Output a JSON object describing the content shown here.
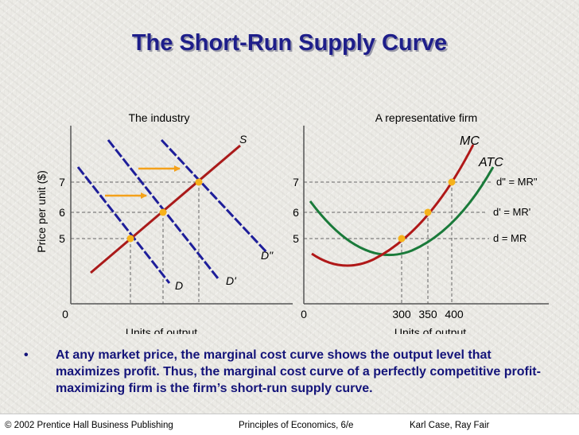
{
  "slide": {
    "title": "The Short-Run Supply Curve",
    "bullet_mark": "•",
    "bullet": "At any market price, the marginal cost curve shows the output level that maximizes profit.  Thus, the marginal cost curve of a perfectly competitive profit-maximizing firm is the firm’s short-run supply curve.",
    "footer": {
      "left": "© 2002 Prentice Hall Business Publishing",
      "center": "Principles of Economics, 6/e",
      "right": "Karl Case, Ray Fair"
    }
  },
  "colors": {
    "title": "#1e1e8a",
    "axis": "#555555",
    "supply": "#aa1a1a",
    "demand": "#1e1e9a",
    "mc": "#b01818",
    "atc": "#1a7a3a",
    "dots": "#f6b21a",
    "arrows": "#f4a11a"
  },
  "panels": {
    "industry": {
      "title": "The industry",
      "ylabel": "Price per unit ($)",
      "xlabel": "Units of output",
      "origin": "0",
      "price_ticks": [
        "7",
        "6",
        "5"
      ],
      "curve_labels": {
        "S": "S",
        "D": "D",
        "D1": "D'",
        "D2": "D\""
      }
    },
    "firm": {
      "title": "A representative firm",
      "xlabel": "Units of output",
      "origin": "0",
      "price_ticks": [
        "7",
        "6",
        "5"
      ],
      "quantity_ticks": [
        "300",
        "350",
        "400"
      ],
      "curve_labels": {
        "MC": "MC",
        "ATC": "ATC"
      },
      "demand_labels": [
        "d\" = MR\"",
        "d' = MR'",
        "d = MR"
      ]
    }
  },
  "chart_data": [
    {
      "type": "line",
      "title": "The industry",
      "xlabel": "Units of output",
      "ylabel": "Price per unit ($)",
      "y_ticks": [
        5,
        6,
        7
      ],
      "series": [
        {
          "name": "S",
          "role": "supply"
        },
        {
          "name": "D",
          "role": "demand"
        },
        {
          "name": "D'",
          "role": "demand"
        },
        {
          "name": "D\"",
          "role": "demand"
        }
      ],
      "equilibria_price": [
        5,
        6,
        7
      ]
    },
    {
      "type": "line",
      "title": "A representative firm",
      "xlabel": "Units of output",
      "x_ticks": [
        300,
        350,
        400
      ],
      "y_ticks": [
        5,
        6,
        7
      ],
      "series": [
        {
          "name": "MC"
        },
        {
          "name": "ATC"
        },
        {
          "name": "d = MR",
          "y": 5
        },
        {
          "name": "d' = MR'",
          "y": 6
        },
        {
          "name": "d\" = MR\"",
          "y": 7
        }
      ],
      "points": [
        {
          "x": 300,
          "y": 5
        },
        {
          "x": 350,
          "y": 6
        },
        {
          "x": 400,
          "y": 7
        }
      ]
    }
  ]
}
